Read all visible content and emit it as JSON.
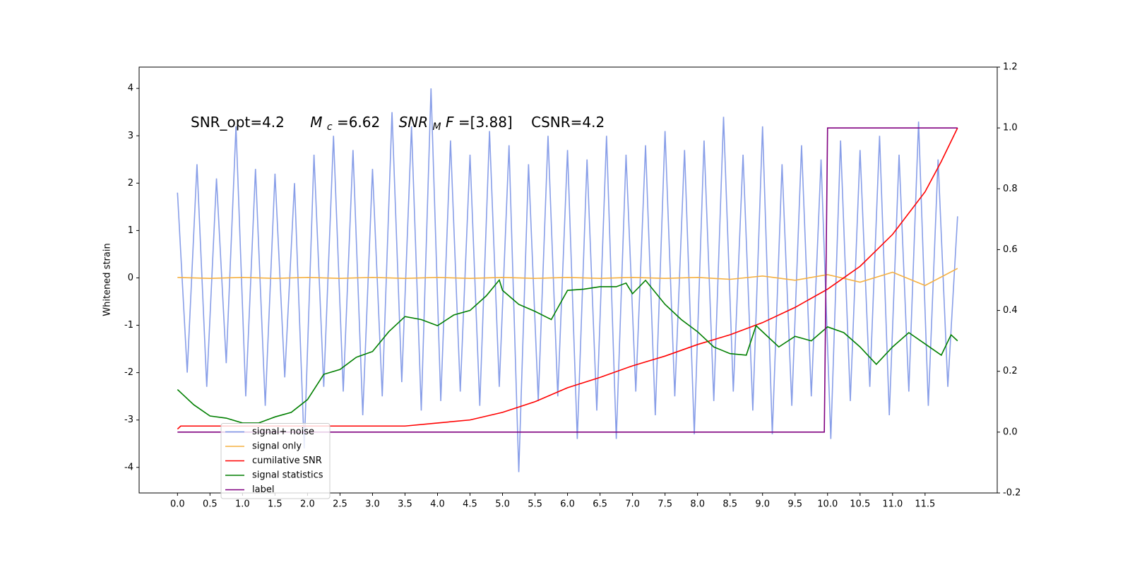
{
  "chart_data": {
    "type": "line",
    "ylabel": "Whitened strain",
    "annotation": [
      "SNR_opt=4.2",
      "M",
      "c",
      "=6.62",
      "SNR",
      "M",
      "F",
      "=[3.88]",
      "CSNR=4.2"
    ],
    "xlim": [
      -0.59,
      12.61
    ],
    "ylim": [
      -4.54,
      4.45
    ],
    "y2lim": [
      -0.2,
      1.2
    ],
    "xticks": [
      {
        "value": 0,
        "label": "0.0"
      },
      0.5,
      {
        "value": 1,
        "label": "1.0"
      },
      1.5,
      {
        "value": 2,
        "label": "2.0"
      },
      2.5,
      {
        "value": 3,
        "label": "3.0"
      },
      3.5,
      {
        "value": 4,
        "label": "4.0"
      },
      4.5,
      {
        "value": 5,
        "label": "5.0"
      },
      5.5,
      {
        "value": 6,
        "label": "6.0"
      },
      6.5,
      {
        "value": 7,
        "label": "7.0"
      },
      7.5,
      {
        "value": 8,
        "label": "8.0"
      },
      8.5,
      {
        "value": 9,
        "label": "9.0"
      },
      9.5,
      {
        "value": 10,
        "label": "10.0"
      },
      10.5,
      {
        "value": 11,
        "label": "11.0"
      },
      11.5
    ],
    "yticks": [
      -4,
      -3,
      -2,
      -1,
      0,
      1,
      2,
      3,
      4
    ],
    "y2ticks": [
      -0.2,
      {
        "value": 0,
        "label": "0.0"
      },
      0.2,
      0.4,
      0.6,
      0.8,
      {
        "value": 1,
        "label": "1.0"
      },
      1.2
    ],
    "legend_loc": "lower left",
    "series": [
      {
        "name": "signal+ noise",
        "color": "#7b93e6",
        "axis": "y",
        "x": [
          0,
          0.15,
          0.3,
          0.45,
          0.6,
          0.75,
          0.9,
          1.05,
          1.2,
          1.35,
          1.5,
          1.65,
          1.8,
          1.95,
          2.1,
          2.25,
          2.4,
          2.55,
          2.7,
          2.85,
          3,
          3.15,
          3.3,
          3.45,
          3.6,
          3.75,
          3.9,
          4.05,
          4.2,
          4.35,
          4.5,
          4.65,
          4.8,
          4.95,
          5.1,
          5.25,
          5.4,
          5.55,
          5.7,
          5.85,
          6,
          6.15,
          6.3,
          6.45,
          6.6,
          6.75,
          6.9,
          7.05,
          7.2,
          7.35,
          7.5,
          7.65,
          7.8,
          7.95,
          8.1,
          8.25,
          8.4,
          8.55,
          8.7,
          8.85,
          9,
          9.15,
          9.3,
          9.45,
          9.6,
          9.75,
          9.9,
          10.05,
          10.2,
          10.35,
          10.5,
          10.65,
          10.8,
          10.95,
          11.1,
          11.25,
          11.4,
          11.55,
          11.7,
          11.85,
          12
        ],
        "values": [
          1.8,
          -2.0,
          2.4,
          -2.3,
          2.1,
          -1.8,
          3.2,
          -2.5,
          2.3,
          -2.7,
          2.2,
          -2.1,
          2.0,
          -3.6,
          2.6,
          -2.3,
          3.0,
          -2.4,
          2.7,
          -2.9,
          2.3,
          -2.5,
          3.5,
          -2.2,
          3.2,
          -2.8,
          4.0,
          -2.6,
          2.9,
          -2.4,
          2.6,
          -2.7,
          3.1,
          -2.3,
          2.8,
          -4.1,
          2.4,
          -2.6,
          3.0,
          -2.5,
          2.7,
          -3.4,
          2.5,
          -2.8,
          3.0,
          -3.4,
          2.6,
          -2.4,
          2.8,
          -2.9,
          3.1,
          -2.5,
          2.7,
          -3.3,
          2.9,
          -2.6,
          3.4,
          -2.4,
          2.6,
          -2.8,
          3.2,
          -3.3,
          2.4,
          -2.7,
          2.8,
          -2.5,
          2.5,
          -3.4,
          2.9,
          -2.6,
          2.7,
          -2.3,
          3.0,
          -2.9,
          2.6,
          -2.4,
          3.3,
          -2.7,
          2.5,
          -2.3,
          1.3
        ]
      },
      {
        "name": "signal only",
        "color": "#f5b041",
        "axis": "y",
        "x": [
          0,
          0.5,
          1,
          1.5,
          2,
          2.5,
          3,
          3.5,
          4,
          4.5,
          5,
          5.5,
          6,
          6.5,
          7,
          7.5,
          8,
          8.5,
          9,
          9.5,
          10,
          10.5,
          11,
          11.5,
          12
        ],
        "values": [
          0.01,
          -0.01,
          0.01,
          -0.01,
          0.01,
          -0.01,
          0.01,
          -0.01,
          0.01,
          -0.01,
          0.01,
          -0.01,
          0.01,
          -0.01,
          0.01,
          -0.01,
          0.01,
          -0.03,
          0.04,
          -0.05,
          0.07,
          -0.09,
          0.12,
          -0.16,
          0.2
        ]
      },
      {
        "name": "cumilative SNR",
        "color": "#ff0000",
        "axis": "y2",
        "x": [
          0,
          0.05,
          3.5,
          4,
          4.5,
          5,
          5.5,
          6,
          6.5,
          7,
          7.5,
          8,
          8.5,
          9,
          9.5,
          10,
          10.5,
          11,
          11.5,
          11.75,
          12
        ],
        "values": [
          0.01,
          0.02,
          0.02,
          0.03,
          0.04,
          0.065,
          0.1,
          0.146,
          0.18,
          0.218,
          0.25,
          0.288,
          0.32,
          0.36,
          0.41,
          0.47,
          0.545,
          0.65,
          0.79,
          0.89,
          1.0
        ]
      },
      {
        "name": "signal statistics",
        "color": "#007f00",
        "axis": "y2",
        "x": [
          0,
          0.25,
          0.5,
          0.75,
          1,
          1.25,
          1.5,
          1.75,
          2,
          2.25,
          2.5,
          2.75,
          3,
          3.25,
          3.5,
          3.75,
          4,
          4.25,
          4.5,
          4.75,
          4.95,
          5,
          5.25,
          5.5,
          5.75,
          6,
          6.25,
          6.5,
          6.75,
          6.9,
          7,
          7.2,
          7.5,
          7.75,
          8,
          8.25,
          8.5,
          8.75,
          8.9,
          9.25,
          9.5,
          9.75,
          10,
          10.25,
          10.5,
          10.75,
          11,
          11.25,
          11.5,
          11.75,
          11.9,
          12
        ],
        "values": [
          0.14,
          0.09,
          0.053,
          0.046,
          0.03,
          0.03,
          0.05,
          0.065,
          0.107,
          0.19,
          0.206,
          0.246,
          0.265,
          0.33,
          0.38,
          0.37,
          0.35,
          0.385,
          0.4,
          0.448,
          0.5,
          0.466,
          0.42,
          0.397,
          0.37,
          0.466,
          0.47,
          0.478,
          0.478,
          0.49,
          0.455,
          0.499,
          0.42,
          0.37,
          0.33,
          0.28,
          0.258,
          0.253,
          0.35,
          0.28,
          0.315,
          0.3,
          0.346,
          0.327,
          0.28,
          0.223,
          0.28,
          0.327,
          0.29,
          0.253,
          0.32,
          0.3
        ]
      },
      {
        "name": "label",
        "color": "#800080",
        "axis": "y2",
        "x": [
          0,
          9.95,
          10,
          12
        ],
        "values": [
          0,
          0,
          1,
          1
        ]
      }
    ]
  }
}
